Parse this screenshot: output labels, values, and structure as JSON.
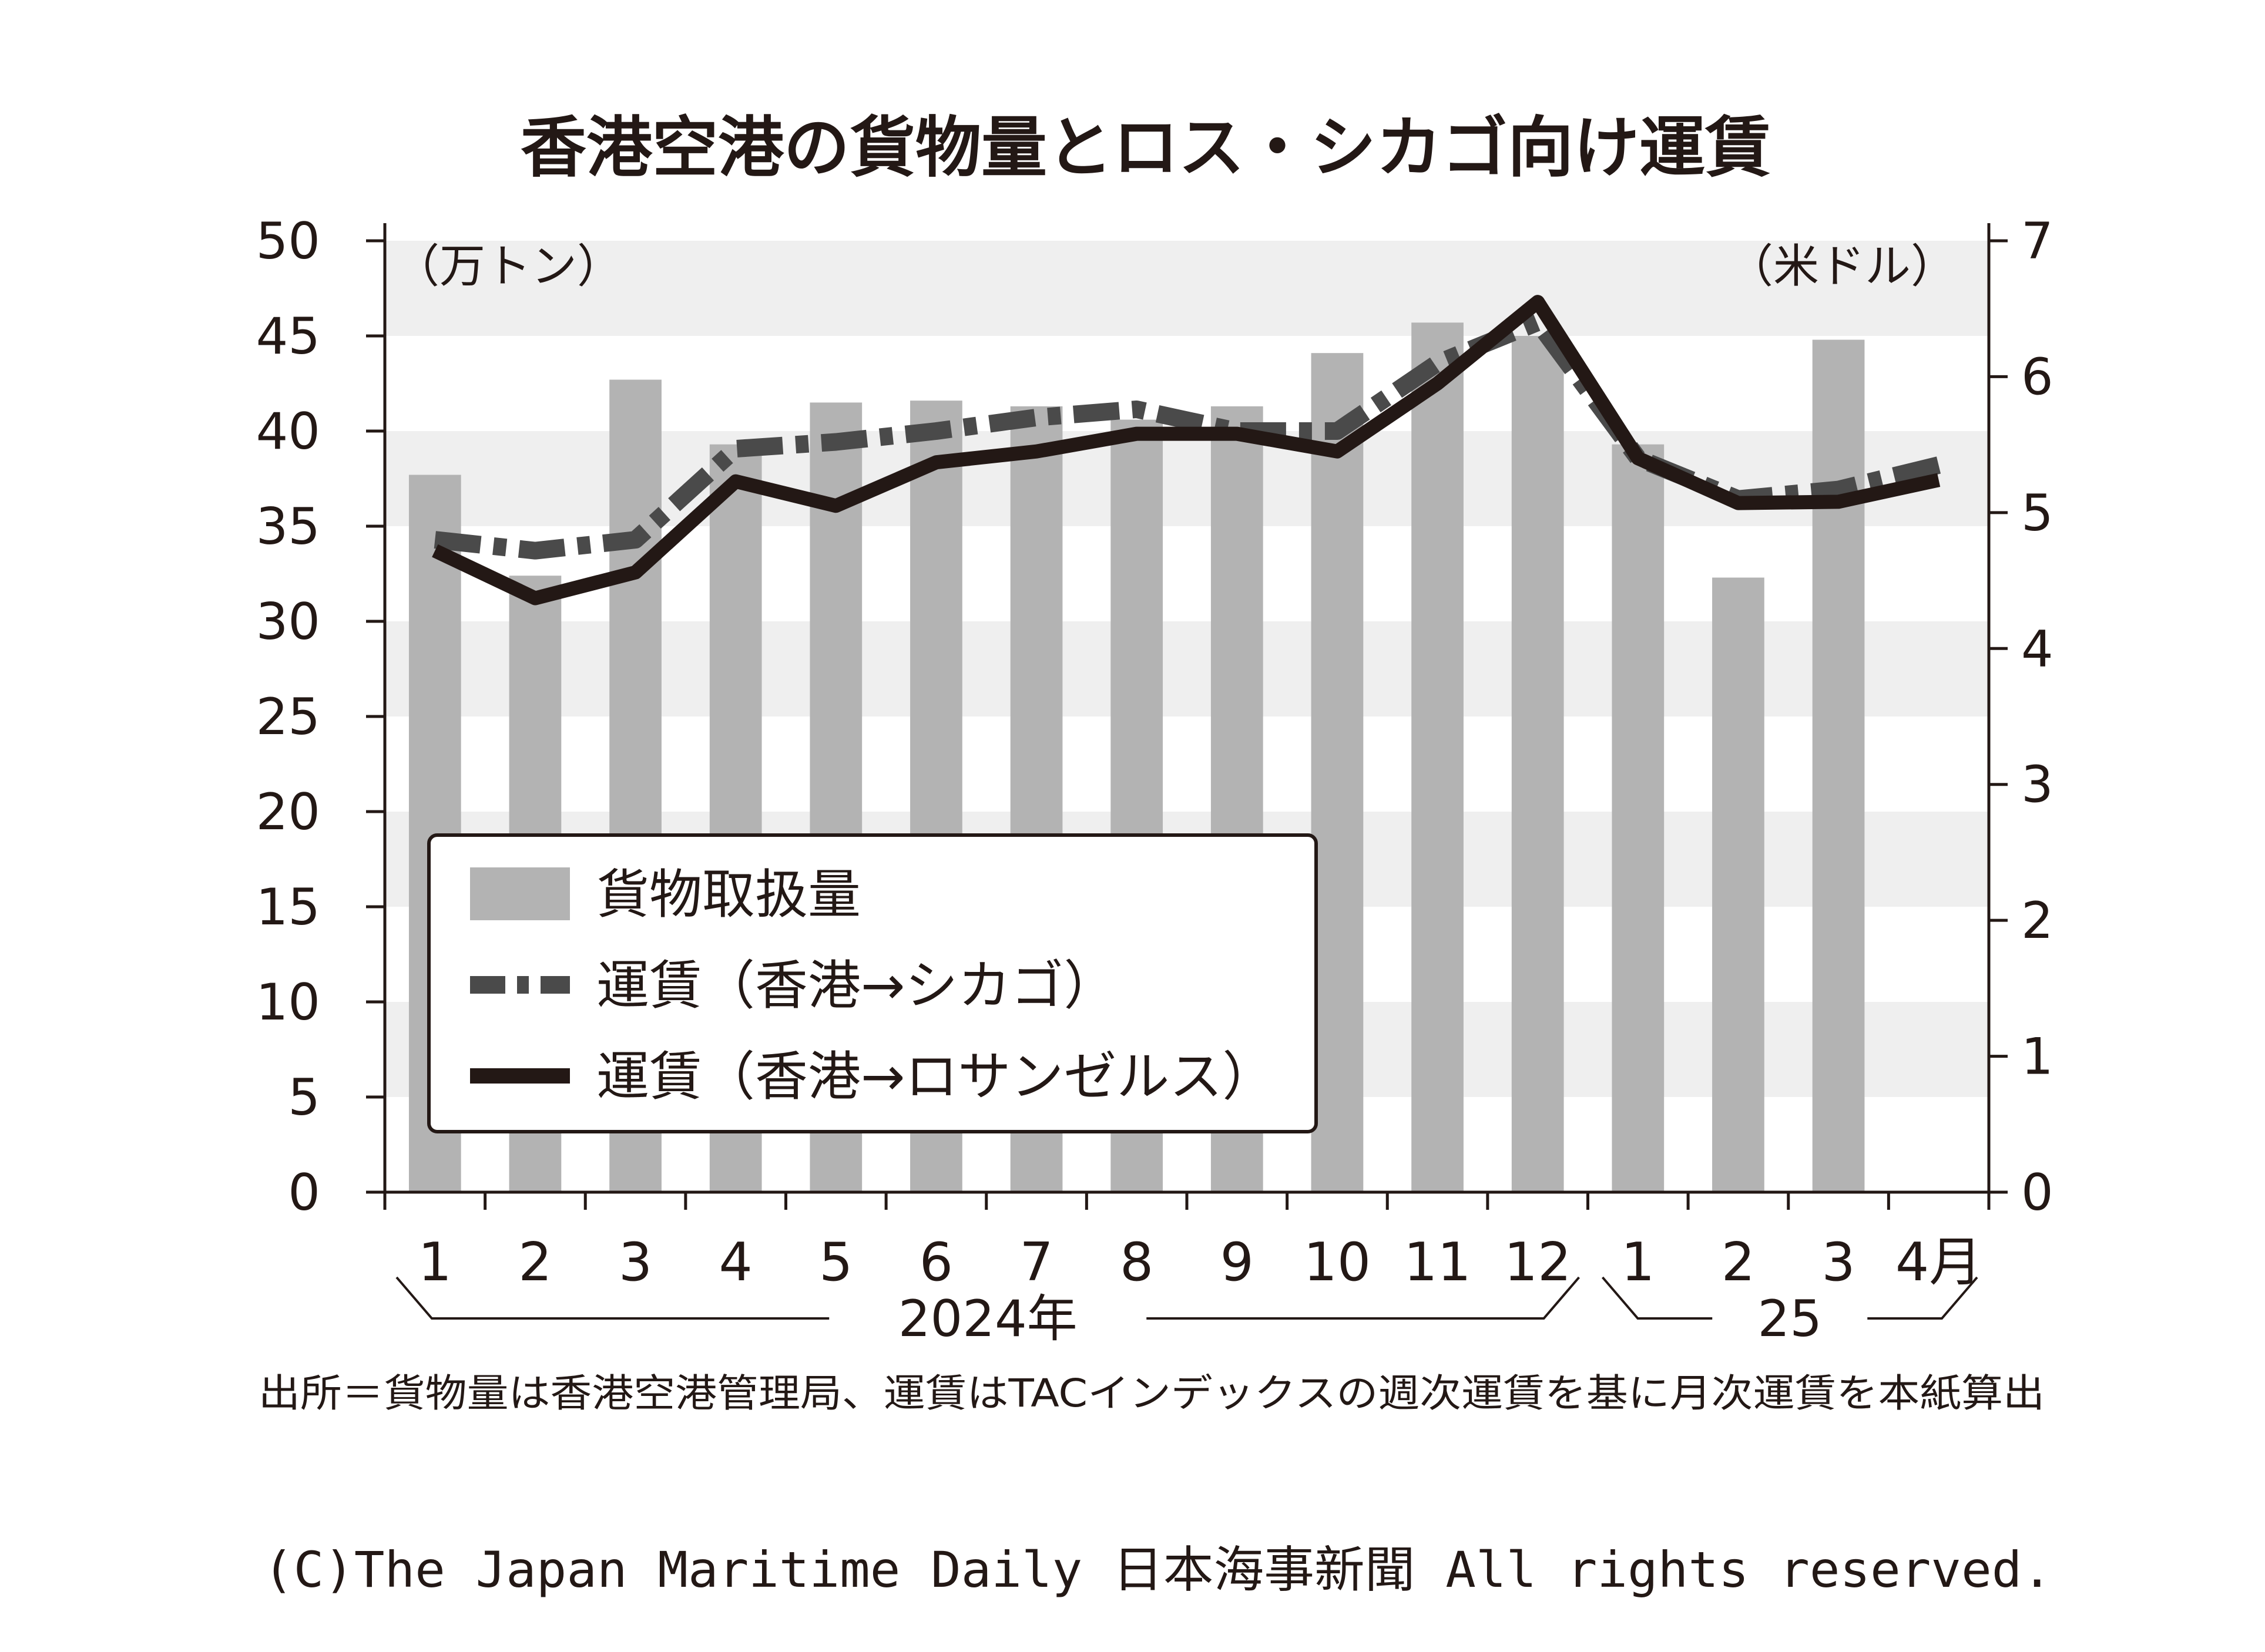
{
  "chart_data": {
    "type": "bar+line",
    "title": "香港空港の貨物量とロス・シカゴ向け運賃",
    "left_axis": {
      "unit": "（万トン）",
      "ylim": [
        0,
        50
      ],
      "ticks": [
        "0",
        "5",
        "10",
        "15",
        "20",
        "25",
        "30",
        "35",
        "40",
        "45",
        "50"
      ]
    },
    "right_axis": {
      "unit": "（米ドル）",
      "ylim": [
        0,
        7
      ],
      "ticks": [
        "0",
        "1",
        "2",
        "3",
        "4",
        "5",
        "6",
        "7"
      ]
    },
    "categories": [
      "1",
      "2",
      "3",
      "4",
      "5",
      "6",
      "7",
      "8",
      "9",
      "10",
      "11",
      "12",
      "1",
      "2",
      "3",
      "4月"
    ],
    "year_groups": [
      {
        "label": "2024年",
        "from": 0,
        "to": 11
      },
      {
        "label": "25",
        "from": 12,
        "to": 15
      }
    ],
    "series": [
      {
        "name": "貨物取扱量",
        "type": "bar",
        "axis": "left",
        "color": "#b3b3b3",
        "values": [
          37.7,
          32.4,
          42.7,
          39.3,
          41.5,
          41.6,
          41.3,
          40.6,
          41.3,
          44.1,
          45.7,
          45.0,
          39.3,
          32.3,
          44.8,
          null
        ]
      },
      {
        "name": "運賃（香港→シカゴ）",
        "type": "line",
        "style": "dash-dot",
        "axis": "right",
        "color": "#4a4a4a",
        "values": [
          4.8,
          4.72,
          4.8,
          5.47,
          5.52,
          5.6,
          5.7,
          5.76,
          5.6,
          5.6,
          6.1,
          6.4,
          5.4,
          5.1,
          5.17,
          5.35
        ]
      },
      {
        "name": "運賃（香港→ロサンゼルス）",
        "type": "line",
        "style": "solid",
        "axis": "right",
        "color": "#231815",
        "values": [
          4.72,
          4.37,
          4.56,
          5.23,
          5.05,
          5.37,
          5.45,
          5.58,
          5.58,
          5.45,
          5.95,
          6.55,
          5.4,
          5.07,
          5.08,
          5.24
        ]
      }
    ],
    "gridlines": "alternating-bands",
    "legend_position": "bottom-left",
    "source_note": "出所＝貨物量は香港空港管理局、運賃はTACインデックスの週次運賃を基に月次運賃を本紙算出",
    "copyright": "(C)The Japan Maritime Daily 日本海事新聞 All rights reserved."
  }
}
